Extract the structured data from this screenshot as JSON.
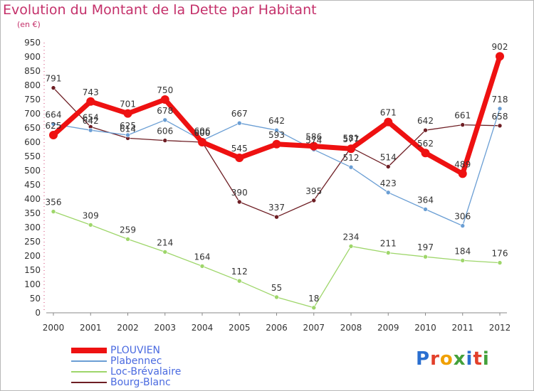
{
  "title": "Evolution du Montant de la Dette par Habitant",
  "unit": "(en €)",
  "logo": {
    "letters": [
      {
        "ch": "P",
        "color": "#2a6fd0"
      },
      {
        "ch": "r",
        "color": "#e23f2a"
      },
      {
        "ch": "o",
        "color": "#f0a000"
      },
      {
        "ch": "x",
        "color": "#43a13b"
      },
      {
        "ch": "i",
        "color": "#2a6fd0"
      },
      {
        "ch": "t",
        "color": "#e23f2a"
      },
      {
        "ch": "i",
        "color": "#43a13b"
      }
    ]
  },
  "chart_data": {
    "type": "line",
    "title": "Evolution du Montant de la Dette par Habitant",
    "subtitle": "(en €)",
    "x": [
      "2000",
      "2001",
      "2002",
      "2003",
      "2004",
      "2005",
      "2006",
      "2007",
      "2008",
      "2009",
      "2010",
      "2011",
      "2012"
    ],
    "ylim": [
      0,
      950
    ],
    "yticks": [
      0,
      50,
      100,
      150,
      200,
      250,
      300,
      350,
      400,
      450,
      500,
      550,
      600,
      650,
      700,
      750,
      800,
      850,
      900,
      950
    ],
    "grid": false,
    "legend_position": "bottom-left",
    "series": [
      {
        "name": "Bourg-Blanc",
        "color": "#6e1e24",
        "width": 1.3,
        "marker": 3,
        "values": [
          791,
          654,
          614,
          606,
          600,
          390,
          337,
          395,
          581,
          514,
          642,
          661,
          658
        ]
      },
      {
        "name": "Loc-Brévalaire",
        "color": "#9ed66a",
        "width": 1.3,
        "marker": 3,
        "values": [
          356,
          309,
          259,
          214,
          164,
          112,
          55,
          18,
          234,
          211,
          197,
          184,
          176
        ]
      },
      {
        "name": "Plabennec",
        "color": "#6a9ed4",
        "width": 1.3,
        "marker": 3,
        "values": [
          664,
          642,
          625,
          678,
          606,
          667,
          642,
          574,
          512,
          423,
          364,
          306,
          718
        ]
      },
      {
        "name": "PLOUVIEN",
        "color": "#ee1111",
        "width": 7,
        "marker": 6,
        "values": [
          625,
          743,
          701,
          750,
          600,
          545,
          593,
          586,
          577,
          671,
          562,
          489,
          902
        ]
      }
    ],
    "legend_order": [
      "PLOUVIEN",
      "Plabennec",
      "Loc-Brévalaire",
      "Bourg-Blanc"
    ]
  }
}
